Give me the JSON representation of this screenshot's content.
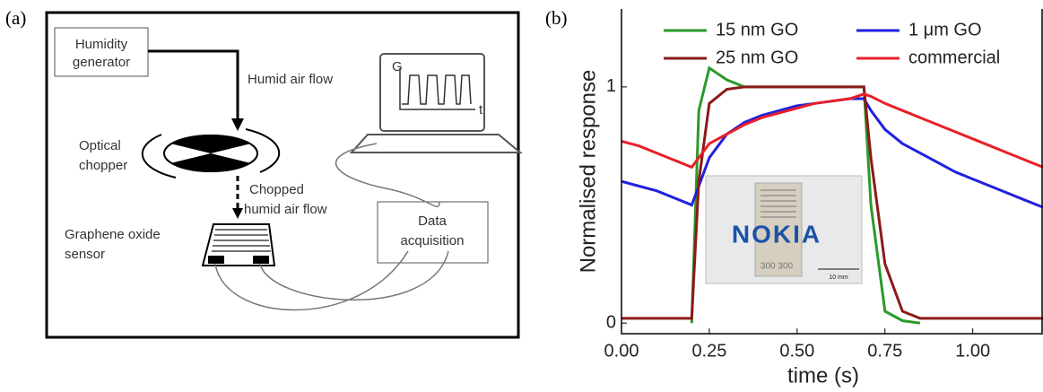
{
  "panel_labels": [
    "(a)",
    "(b)"
  ],
  "diagram": {
    "generator": [
      "Humidity",
      "generator"
    ],
    "humid_flow": "Humid air flow",
    "chopper": [
      "Optical",
      "chopper"
    ],
    "chopped_flow": [
      "Chopped",
      "humid air flow"
    ],
    "sensor": [
      "Graphene oxide",
      "sensor"
    ],
    "daq": [
      "Data",
      "acquisition"
    ],
    "graph_y": "G",
    "graph_x": "t"
  },
  "inset": {
    "logo": "NOKIA",
    "chip": "300 300",
    "scale": "10 mm"
  },
  "chart_data": {
    "type": "line",
    "xlabel": "time (s)",
    "ylabel": "Normalised response",
    "xlim": [
      0,
      1.2
    ],
    "ylim": [
      -0.045,
      1.33
    ],
    "xticks": [
      {
        "value": 0,
        "label": "0.00"
      },
      {
        "value": 0.25,
        "label": "0.25"
      },
      {
        "value": 0.5,
        "label": "0.50"
      },
      {
        "value": 0.75,
        "label": "0.75"
      },
      {
        "value": 1,
        "label": "1.00"
      }
    ],
    "yticks": [
      0,
      1
    ],
    "x": [
      0,
      0.05,
      0.1,
      0.15,
      0.2,
      0.22,
      0.25,
      0.3,
      0.35,
      0.4,
      0.45,
      0.5,
      0.55,
      0.6,
      0.65,
      0.69,
      0.71,
      0.75,
      0.8,
      0.85,
      0.9,
      0.95,
      1.0,
      1.05,
      1.1,
      1.15,
      1.2
    ],
    "series": [
      {
        "name": "15 nm GO",
        "color": "#2a9a2a",
        "values": [
          null,
          null,
          null,
          null,
          0,
          0.9,
          1.08,
          1.03,
          1.0,
          1.0,
          1.0,
          1.0,
          1.0,
          1.0,
          1.0,
          1.0,
          0.5,
          0.05,
          0.01,
          0,
          null,
          null,
          null,
          null,
          null,
          null,
          null
        ]
      },
      {
        "name": "1 μm GO",
        "color": "#2020e0",
        "values": [
          0.6,
          0.58,
          0.56,
          0.53,
          0.5,
          0.58,
          0.7,
          0.8,
          0.85,
          0.88,
          0.9,
          0.92,
          0.93,
          0.94,
          0.95,
          0.95,
          0.9,
          0.82,
          0.76,
          0.72,
          0.68,
          0.64,
          0.61,
          0.58,
          0.55,
          0.52,
          0.49
        ]
      },
      {
        "name": "25 nm GO",
        "color": "#8b1a1a",
        "values": [
          0.02,
          0.02,
          0.02,
          0.02,
          0.02,
          0.6,
          0.93,
          0.99,
          1.0,
          1.0,
          1.0,
          1.0,
          1.0,
          1.0,
          1.0,
          1.0,
          0.7,
          0.25,
          0.05,
          0.02,
          0.02,
          0.02,
          0.02,
          0.02,
          0.02,
          0.02,
          0.02
        ]
      },
      {
        "name": "commercial",
        "color": "#e8202a",
        "values": [
          0.77,
          0.75,
          0.72,
          0.69,
          0.66,
          0.7,
          0.76,
          0.8,
          0.84,
          0.87,
          0.89,
          0.91,
          0.93,
          0.94,
          0.95,
          0.97,
          0.96,
          0.93,
          0.9,
          0.87,
          0.84,
          0.81,
          0.78,
          0.75,
          0.72,
          0.69,
          0.66
        ]
      }
    ]
  }
}
